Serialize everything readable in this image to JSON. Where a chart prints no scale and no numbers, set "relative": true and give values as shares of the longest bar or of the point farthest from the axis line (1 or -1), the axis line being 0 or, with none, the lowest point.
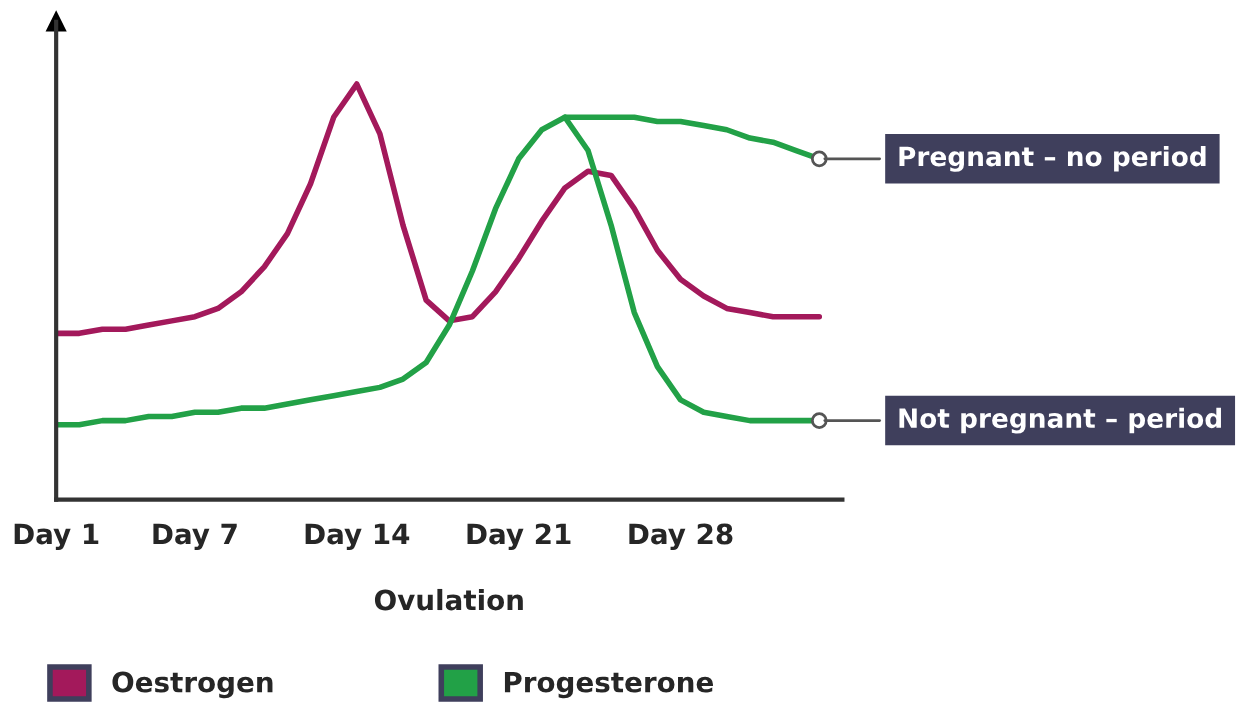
{
  "chart_data": {
    "type": "line",
    "relative": true,
    "xlabel": "Ovulation",
    "categories": [
      "Day 1",
      null,
      null,
      null,
      null,
      null,
      "Day 7",
      null,
      null,
      null,
      null,
      null,
      null,
      "Day 14",
      null,
      null,
      null,
      null,
      null,
      null,
      "Day 21",
      null,
      null,
      null,
      null,
      null,
      null,
      "Day 28",
      null,
      null,
      null,
      null,
      null,
      null
    ],
    "series": [
      {
        "name": "Oestrogen",
        "color": "#a3195b",
        "values": [
          0.4,
          0.4,
          0.41,
          0.41,
          0.42,
          0.43,
          0.44,
          0.46,
          0.5,
          0.56,
          0.64,
          0.76,
          0.92,
          1.0,
          0.88,
          0.66,
          0.48,
          0.43,
          0.44,
          0.5,
          0.58,
          0.67,
          0.75,
          0.79,
          0.78,
          0.7,
          0.6,
          0.53,
          0.49,
          0.46,
          0.45,
          0.44,
          0.44,
          0.44
        ]
      },
      {
        "name": "Progesterone",
        "color": "#22a147",
        "values": [
          0.18,
          0.18,
          0.19,
          0.19,
          0.2,
          0.2,
          0.21,
          0.21,
          0.22,
          0.22,
          0.23,
          0.24,
          0.25,
          0.26,
          0.27,
          0.29,
          0.33,
          0.42,
          0.55,
          0.7,
          0.82,
          0.89,
          0.92,
          0.92,
          0.92,
          0.92,
          0.91,
          0.91,
          0.9,
          0.89,
          0.87,
          0.86,
          0.84,
          0.82
        ]
      },
      {
        "color": "#22a147",
        "values": [
          null,
          null,
          null,
          null,
          null,
          null,
          null,
          null,
          null,
          null,
          null,
          null,
          null,
          null,
          null,
          null,
          null,
          null,
          null,
          null,
          null,
          null,
          0.92,
          0.84,
          0.66,
          0.45,
          0.32,
          0.24,
          0.21,
          0.2,
          0.19,
          0.19,
          0.19,
          0.19
        ]
      }
    ],
    "annotations": [
      "Pregnant – no period",
      "Not pregnant – period"
    ],
    "legend": "bottom",
    "line_style": "solid",
    "marker": "none"
  }
}
